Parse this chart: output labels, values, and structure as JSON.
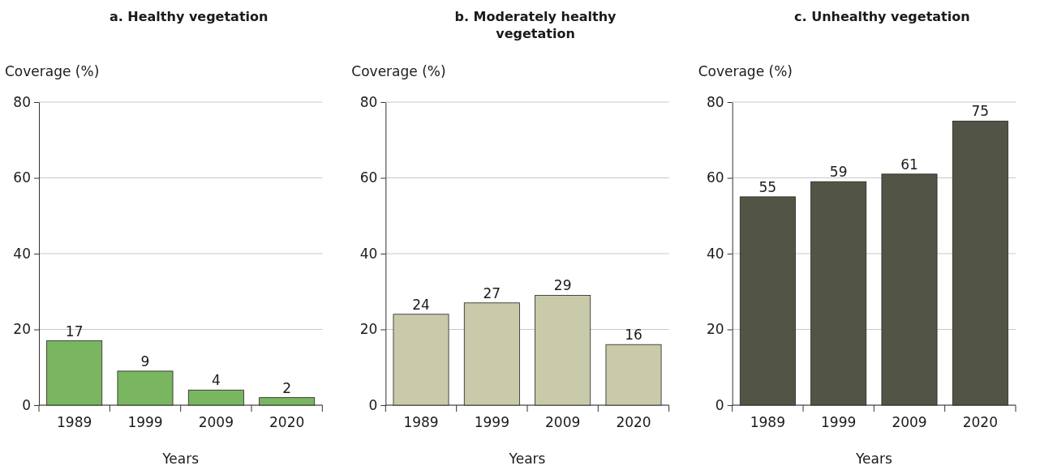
{
  "chart_data": [
    {
      "type": "bar",
      "title": "a. Healthy vegetation",
      "ylabel": "Coverage (%)",
      "xlabel": "Years",
      "categories": [
        "1989",
        "1999",
        "2009",
        "2020"
      ],
      "values": [
        17,
        9,
        4,
        2
      ],
      "color": "#7ab55f",
      "ylim": [
        0,
        80
      ],
      "yticks": [
        0,
        20,
        40,
        60,
        80
      ],
      "grid": "y",
      "data_labels": true
    },
    {
      "type": "bar",
      "title": "b. Moderately healthy vegetation",
      "ylabel": "Coverage (%)",
      "xlabel": "Years",
      "categories": [
        "1989",
        "1999",
        "2009",
        "2020"
      ],
      "values": [
        24,
        27,
        29,
        16
      ],
      "color": "#c8caa9",
      "ylim": [
        0,
        80
      ],
      "yticks": [
        0,
        20,
        40,
        60,
        80
      ],
      "grid": "y",
      "data_labels": true
    },
    {
      "type": "bar",
      "title": "c. Unhealthy vegetation",
      "ylabel": "Coverage (%)",
      "xlabel": "Years",
      "categories": [
        "1989",
        "1999",
        "2009",
        "2020"
      ],
      "values": [
        55,
        59,
        61,
        75
      ],
      "color": "#525545",
      "ylim": [
        0,
        80
      ],
      "yticks": [
        0,
        20,
        40,
        60,
        80
      ],
      "grid": "y",
      "data_labels": true
    }
  ]
}
